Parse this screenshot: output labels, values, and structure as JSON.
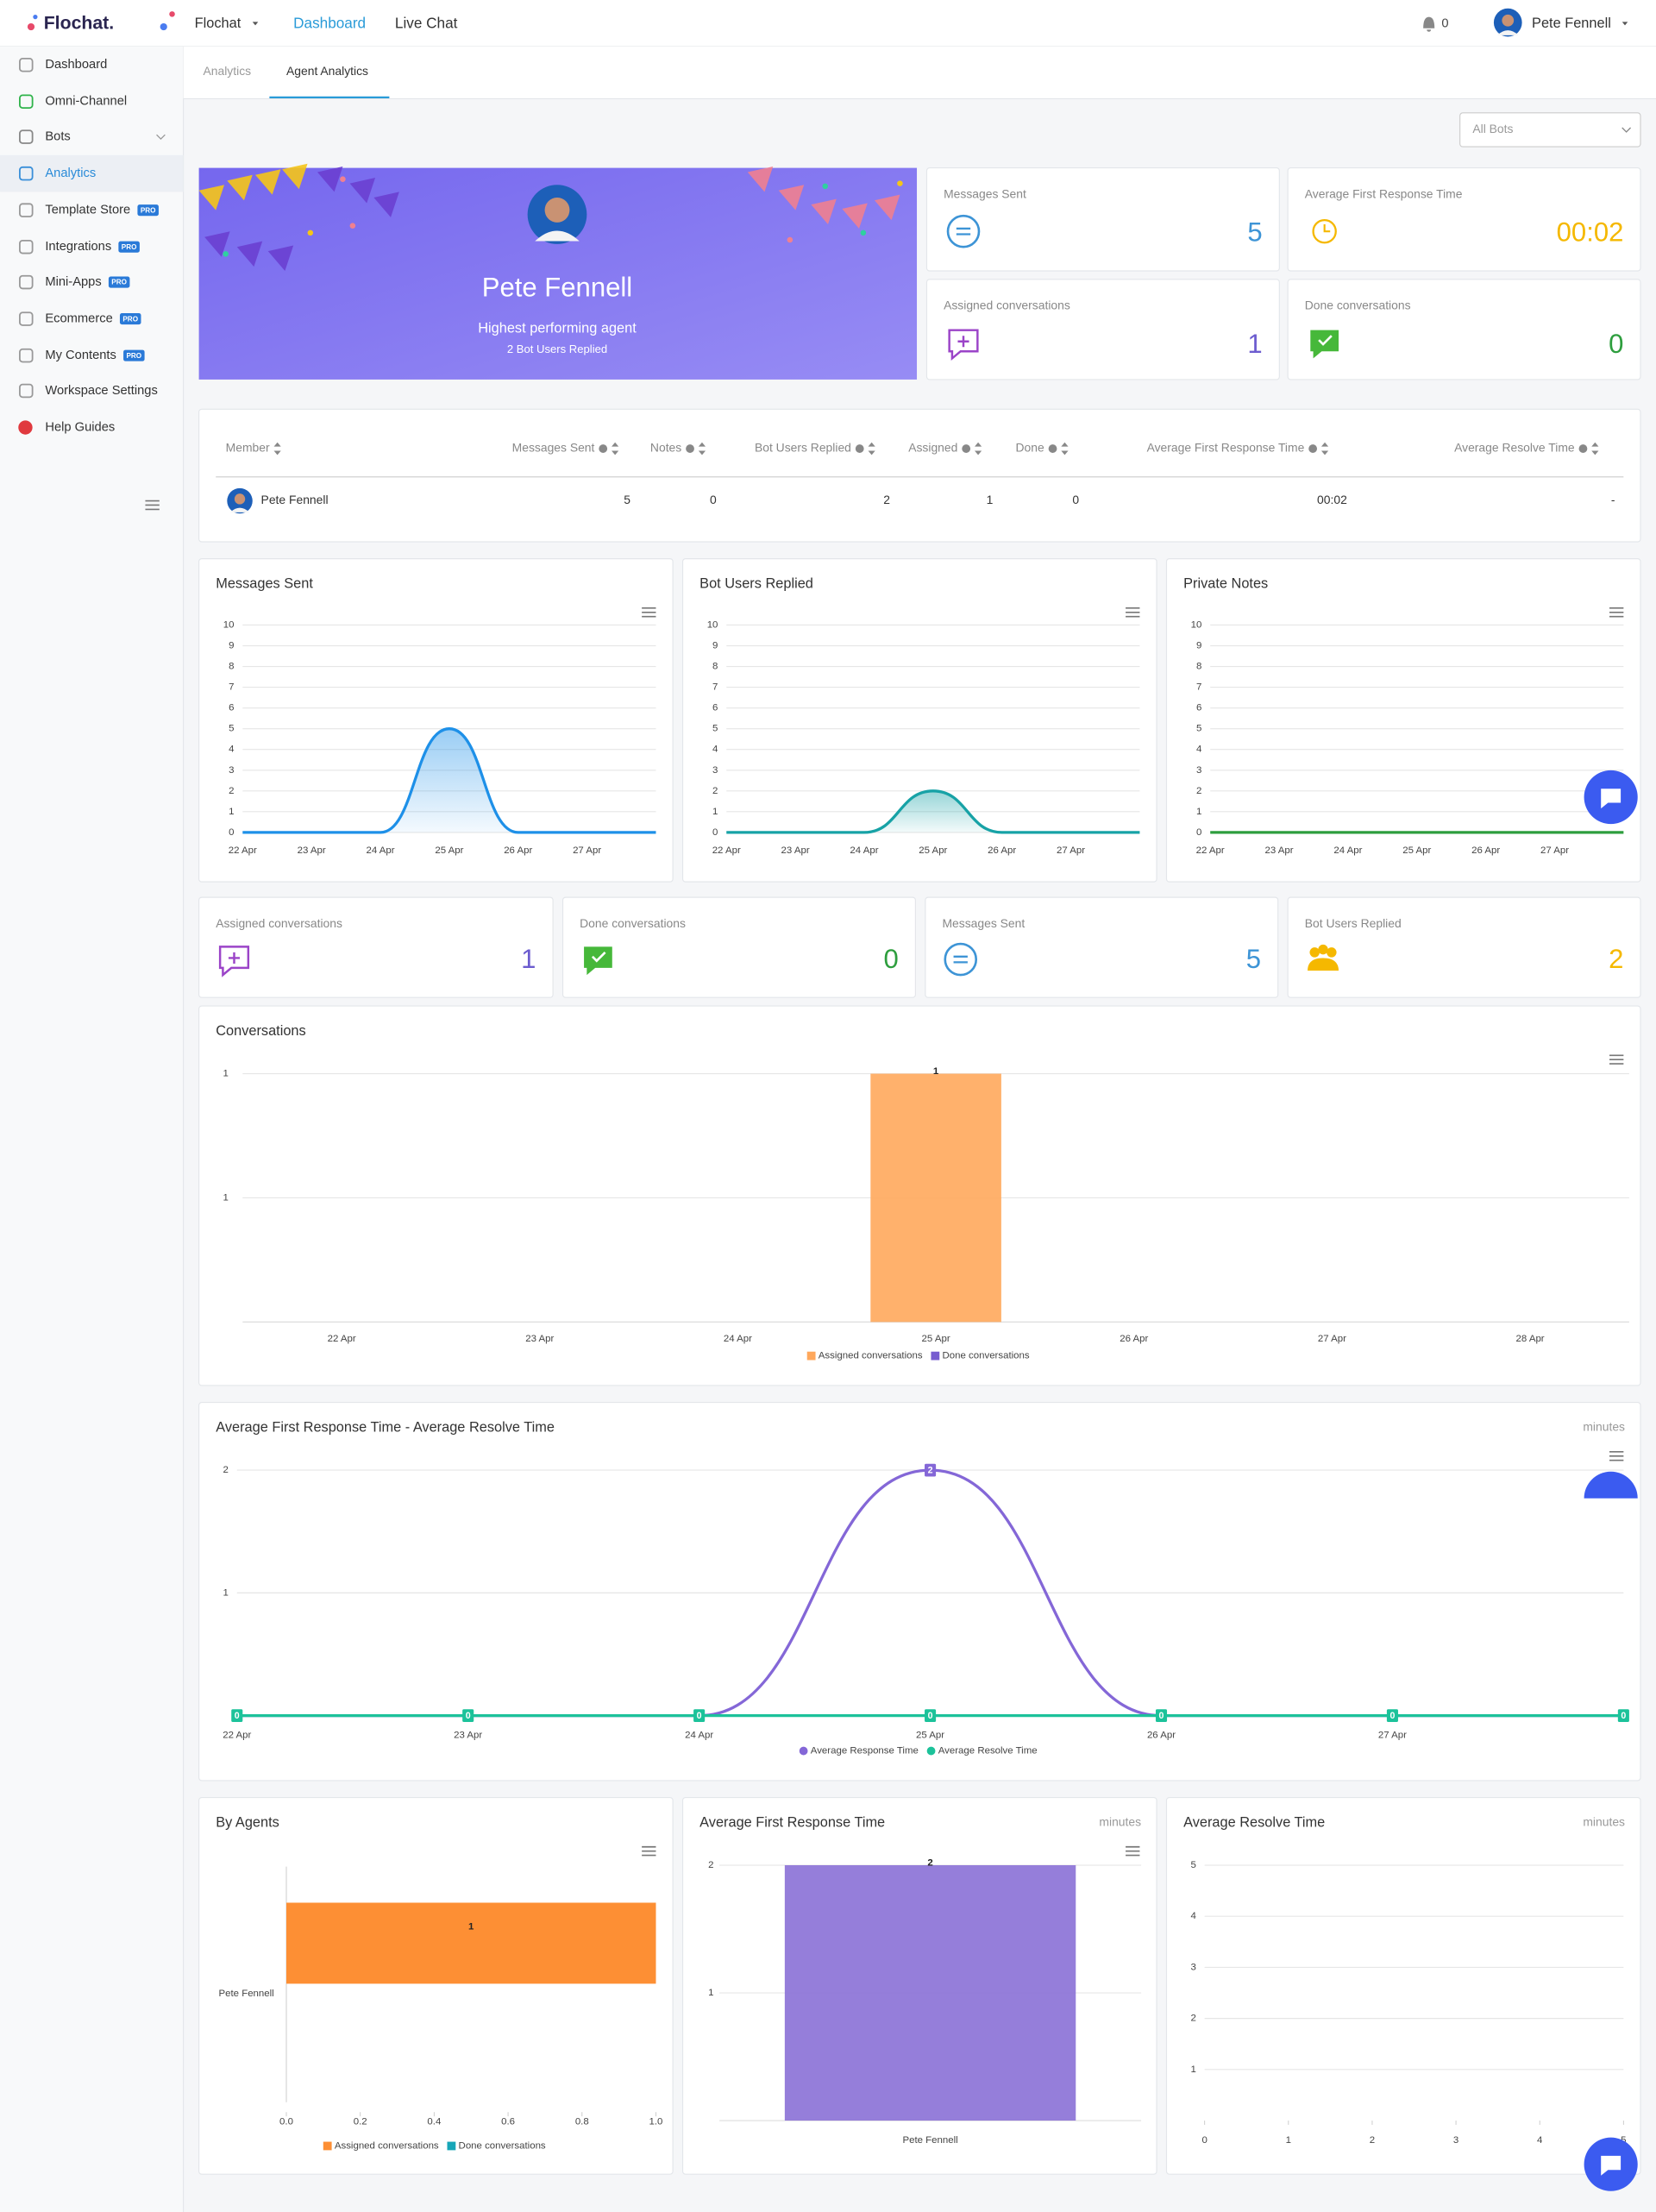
{
  "topbar": {
    "brand": "Flochat.",
    "workspace": "Flochat",
    "nav": [
      "Dashboard",
      "Live Chat"
    ],
    "notifications": "0",
    "user": "Pete Fennell"
  },
  "sidebar": {
    "items": [
      {
        "label": "Dashboard"
      },
      {
        "label": "Omni-Channel"
      },
      {
        "label": "Bots"
      },
      {
        "label": "Analytics"
      },
      {
        "label": "Template Store",
        "badge": "PRO"
      },
      {
        "label": "Integrations",
        "badge": "PRO"
      },
      {
        "label": "Mini-Apps",
        "badge": "PRO"
      },
      {
        "label": "Ecommerce",
        "badge": "PRO"
      },
      {
        "label": "My Contents",
        "badge": "PRO"
      },
      {
        "label": "Workspace Settings"
      },
      {
        "label": "Help Guides"
      }
    ]
  },
  "tabs": [
    "Analytics",
    "Agent Analytics"
  ],
  "filter": "All Bots",
  "hero": {
    "name": "Pete Fennell",
    "subtitle": "Highest performing agent",
    "detail": "2 Bot Users Replied"
  },
  "stats": [
    {
      "label": "Messages Sent",
      "value": "5"
    },
    {
      "label": "Average First Response Time",
      "value": "00:02"
    },
    {
      "label": "Assigned conversations",
      "value": "1"
    },
    {
      "label": "Done conversations",
      "value": "0"
    }
  ],
  "table": {
    "columns": [
      "Member",
      "Messages Sent",
      "Notes",
      "Bot Users Replied",
      "Assigned",
      "Done",
      "Average First Response Time",
      "Average Resolve Time"
    ],
    "rows": [
      [
        "Pete Fennell",
        "5",
        "0",
        "2",
        "1",
        "0",
        "00:02",
        "-"
      ]
    ]
  },
  "stats2": [
    {
      "label": "Assigned conversations",
      "value": "1"
    },
    {
      "label": "Done conversations",
      "value": "0"
    },
    {
      "label": "Messages Sent",
      "value": "5"
    },
    {
      "label": "Bot Users Replied",
      "value": "2"
    }
  ],
  "chart_data": [
    {
      "type": "area",
      "title": "Messages Sent",
      "categories": [
        "22 Apr",
        "23 Apr",
        "24 Apr",
        "25 Apr",
        "26 Apr",
        "27 Apr",
        null
      ],
      "values": [
        0,
        0,
        0,
        5,
        0,
        0,
        0
      ],
      "color": "#1e90e8",
      "ylim": [
        0,
        10
      ],
      "yticks": [
        0,
        1,
        2,
        3,
        4,
        5,
        6,
        7,
        8,
        9,
        10
      ],
      "grid": true
    },
    {
      "type": "area",
      "title": "Bot Users Replied",
      "categories": [
        "22 Apr",
        "23 Apr",
        "24 Apr",
        "25 Apr",
        "26 Apr",
        "27 Apr",
        null
      ],
      "values": [
        0,
        0,
        0,
        2,
        0,
        0,
        0
      ],
      "color": "#17a2a6",
      "ylim": [
        0,
        10
      ],
      "yticks": [
        0,
        1,
        2,
        3,
        4,
        5,
        6,
        7,
        8,
        9,
        10
      ],
      "grid": true
    },
    {
      "type": "area",
      "title": "Private Notes",
      "categories": [
        "22 Apr",
        "23 Apr",
        "24 Apr",
        "25 Apr",
        "26 Apr",
        "27 Apr",
        null
      ],
      "values": [
        0,
        0,
        0,
        0,
        0,
        0,
        0
      ],
      "color": "#2e9e3e",
      "ylim": [
        0,
        10
      ],
      "yticks": [
        0,
        1,
        2,
        3,
        4,
        5,
        6,
        7,
        8,
        9,
        10
      ],
      "grid": true
    },
    {
      "type": "bar",
      "title": "Conversations",
      "categories": [
        "22 Apr",
        "23 Apr",
        "24 Apr",
        "25 Apr",
        "26 Apr",
        "27 Apr",
        "28 Apr"
      ],
      "series": [
        {
          "name": "Assigned conversations",
          "color": "#ffa85c",
          "values": [
            0,
            0,
            0,
            1,
            0,
            0,
            0
          ]
        },
        {
          "name": "Done conversations",
          "color": "#775dd0",
          "values": [
            0,
            0,
            0,
            0,
            0,
            0,
            0
          ]
        }
      ],
      "ylim": [
        0,
        1
      ],
      "yticks": [
        {
          "value": 0.5,
          "label": "1"
        },
        1
      ],
      "grid": true
    },
    {
      "type": "line",
      "title": "Average First Response Time - Average Resolve Time",
      "subtitle": "minutes",
      "categories": [
        "22 Apr",
        "23 Apr",
        "24 Apr",
        "25 Apr",
        "26 Apr",
        "27 Apr",
        null
      ],
      "series": [
        {
          "name": "Average Response Time",
          "color": "#8467d7",
          "values": [
            0,
            0,
            0,
            2,
            0,
            0,
            0
          ]
        },
        {
          "name": "Average Resolve Time",
          "color": "#1cc29a",
          "values": [
            0,
            0,
            0,
            0,
            0,
            0,
            0
          ]
        }
      ],
      "ylim": [
        0,
        2
      ],
      "yticks": [
        1,
        2
      ],
      "grid": true
    },
    {
      "type": "bar",
      "horizontal": true,
      "title": "By Agents",
      "categories": [
        "Pete Fennell"
      ],
      "series": [
        {
          "name": "Assigned conversations",
          "color": "#fd8f34",
          "values": [
            1
          ]
        },
        {
          "name": "Done conversations",
          "color": "#17a6b8",
          "values": [
            0
          ]
        }
      ],
      "xlim": [
        0,
        1
      ],
      "xticks": [
        {
          "value": 0,
          "label": "0.0"
        },
        {
          "value": 0.2,
          "label": "0.2"
        },
        {
          "value": 0.4,
          "label": "0.4"
        },
        {
          "value": 0.6,
          "label": "0.6"
        },
        {
          "value": 0.8,
          "label": "0.8"
        },
        {
          "value": 1,
          "label": "1.0"
        }
      ]
    },
    {
      "type": "bar",
      "title": "Average First Response Time",
      "subtitle": "minutes",
      "categories": [
        "Pete Fennell"
      ],
      "values": [
        2
      ],
      "color": "#8a70d6",
      "ylim": [
        0,
        2
      ],
      "yticks": [
        1,
        2
      ],
      "grid": true
    },
    {
      "type": "bar",
      "title": "Average Resolve Time",
      "subtitle": "minutes",
      "xlim": [
        0,
        5
      ],
      "xticks": [
        0,
        1,
        2,
        3,
        4,
        5
      ],
      "ylim": [
        0,
        5
      ],
      "yticks": [
        1,
        2,
        3,
        4,
        5
      ],
      "grid": true
    }
  ]
}
